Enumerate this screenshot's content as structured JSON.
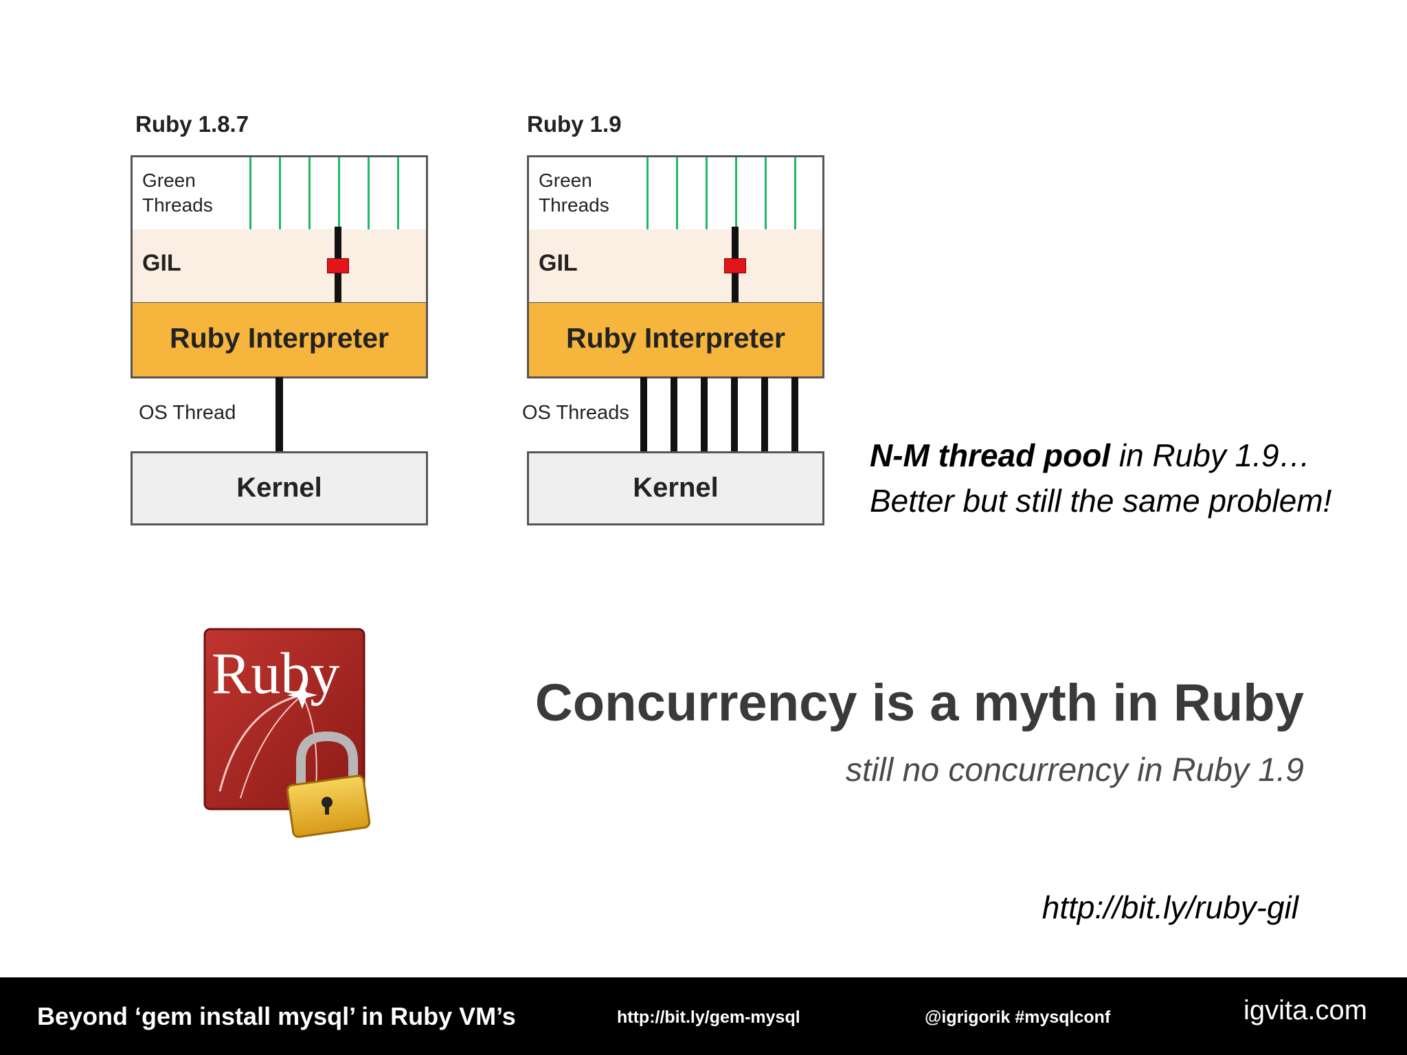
{
  "diagrams": [
    {
      "title": "Ruby 1.8.7",
      "green_label": "Green\nThreads",
      "gil_label": "GIL",
      "interpreter_label": "Ruby Interpreter",
      "os_label": "OS Thread",
      "kernel_label": "Kernel"
    },
    {
      "title": "Ruby 1.9",
      "green_label": "Green\nThreads",
      "gil_label": "GIL",
      "interpreter_label": "Ruby Interpreter",
      "os_label": "OS Threads",
      "kernel_label": "Kernel"
    }
  ],
  "note": {
    "bold": "N-M thread pool",
    "line1_rest": " in Ruby 1.9…",
    "line2": "Better but still the same problem!"
  },
  "logo": {
    "text": "Ruby",
    "icon": "padlock-icon"
  },
  "headline": "Concurrency is a myth in Ruby",
  "subheadline": "still no concurrency in Ruby 1.9",
  "link": "http://bit.ly/ruby-gil",
  "footer": {
    "title": "Beyond ‘gem install mysql’ in Ruby VM’s",
    "link": "http://bit.ly/gem-mysql",
    "handle": "@igrigorik #mysqlconf",
    "brand": "igvita.com"
  },
  "colors": {
    "interpreter": "#f6b53d",
    "gil": "#fbeee3",
    "green_thread": "#1fb864",
    "gil_lock": "#e3151b",
    "footer_bg": "#000000",
    "headline": "#3a3a3a",
    "logo_red": "#a3221f"
  }
}
